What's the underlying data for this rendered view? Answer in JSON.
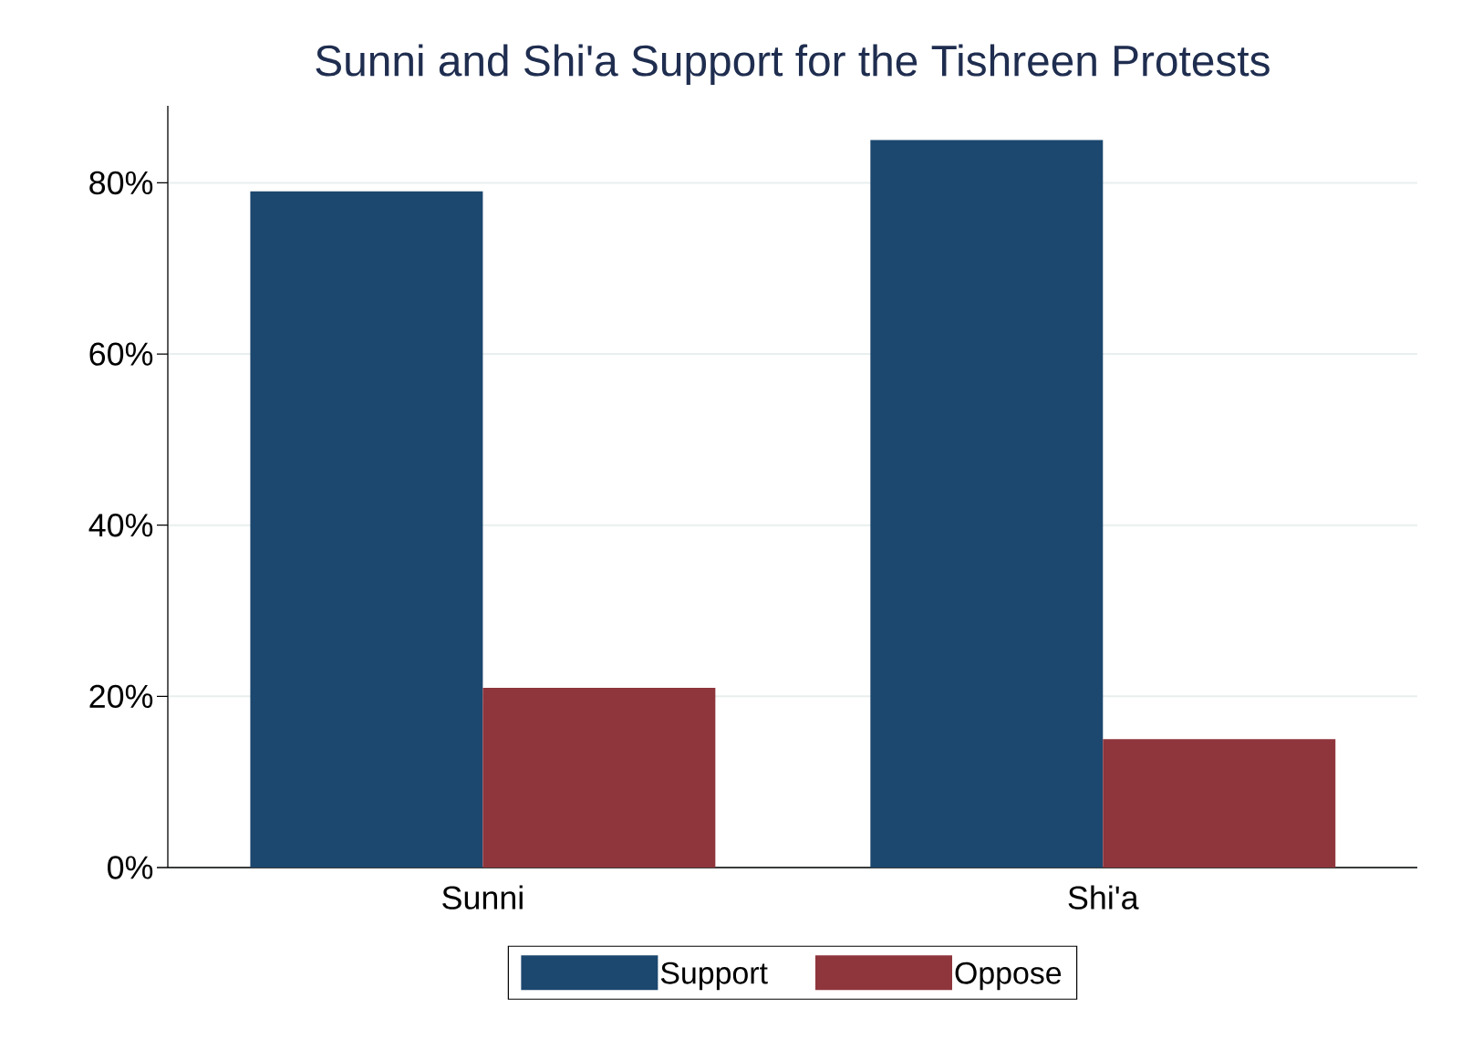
{
  "chart_data": {
    "type": "bar",
    "title": "Sunni and Shi'a Support for the Tishreen Protests",
    "categories": [
      "Sunni",
      "Shi'a"
    ],
    "series": [
      {
        "name": "Support",
        "color": "#1c476e",
        "values": [
          79,
          85
        ]
      },
      {
        "name": "Oppose",
        "color": "#8f353c",
        "values": [
          21,
          15
        ]
      }
    ],
    "ylim": [
      0,
      89
    ],
    "yticks": [
      {
        "value": 0,
        "label": "0%"
      },
      {
        "value": 20,
        "label": "20%"
      },
      {
        "value": 40,
        "label": "40%"
      },
      {
        "value": 60,
        "label": "60%"
      },
      {
        "value": 80,
        "label": "80%"
      }
    ],
    "grid": "y",
    "legend": "bottom"
  }
}
